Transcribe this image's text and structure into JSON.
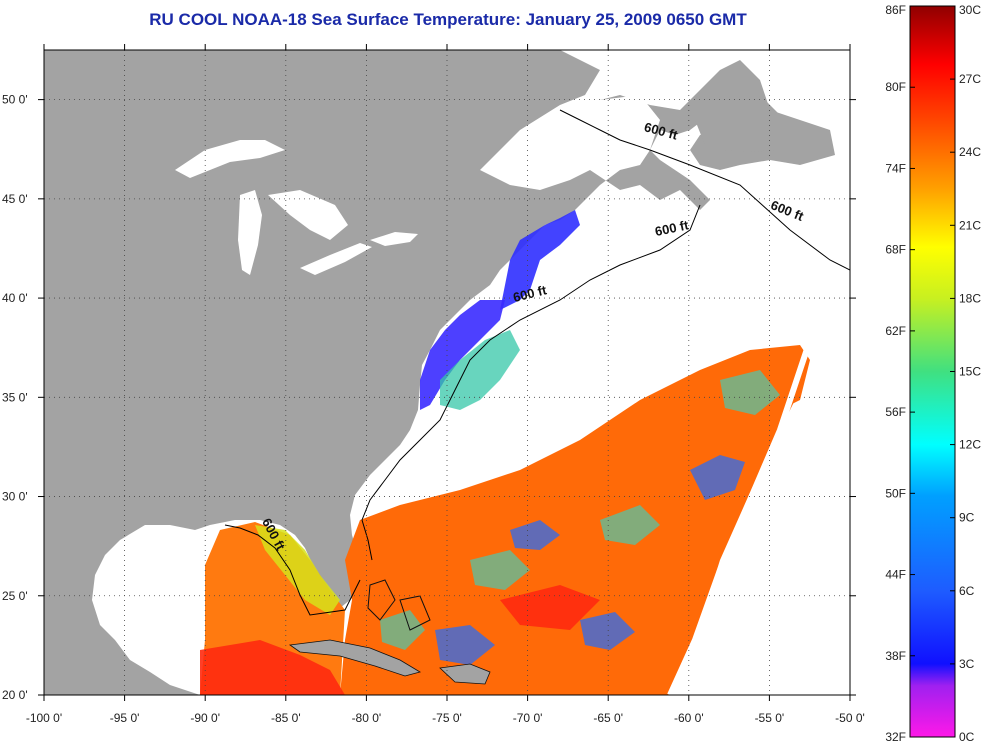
{
  "title": "RU COOL  NOAA-18  Sea Surface Temperature:  January 25, 2009 0650 GMT",
  "map": {
    "lon_range": [
      -100,
      -50
    ],
    "lat_range": [
      20,
      52.5
    ],
    "lon_ticks": [
      {
        "value": -100,
        "label": "-100 0'"
      },
      {
        "value": -95,
        "label": "-95 0'"
      },
      {
        "value": -90,
        "label": "-90 0'"
      },
      {
        "value": -85,
        "label": "-85 0'"
      },
      {
        "value": -80,
        "label": "-80 0'"
      },
      {
        "value": -75,
        "label": "-75 0'"
      },
      {
        "value": -70,
        "label": "-70 0'"
      },
      {
        "value": -65,
        "label": "-65 0'"
      },
      {
        "value": -60,
        "label": "-60 0'"
      },
      {
        "value": -55,
        "label": "-55 0'"
      },
      {
        "value": -50,
        "label": "-50 0'"
      }
    ],
    "lat_ticks": [
      {
        "value": 50,
        "label": "50 0'"
      },
      {
        "value": 45,
        "label": "45 0'"
      },
      {
        "value": 40,
        "label": "40 0'"
      },
      {
        "value": 35,
        "label": "35 0'"
      },
      {
        "value": 30,
        "label": "30 0'"
      },
      {
        "value": 25,
        "label": "25 0'"
      },
      {
        "value": 20,
        "label": "20 0'"
      }
    ],
    "contour_labels": [
      {
        "text": "600 ft",
        "lon": -61.8,
        "lat": 48.2,
        "rotate": 15
      },
      {
        "text": "600 ft",
        "lon": -54.0,
        "lat": 44.2,
        "rotate": 22
      },
      {
        "text": "600 ft",
        "lon": -61.0,
        "lat": 43.3,
        "rotate": -12
      },
      {
        "text": "600 ft",
        "lon": -69.8,
        "lat": 40.0,
        "rotate": -14
      },
      {
        "text": "600 ft",
        "lon": -86.0,
        "lat": 28.0,
        "rotate": 62
      }
    ]
  },
  "colorbar": {
    "f_labels": [
      "86F",
      "80F",
      "74F",
      "68F",
      "62F",
      "56F",
      "50F",
      "44F",
      "38F",
      "32F"
    ],
    "c_labels": [
      "30C",
      "27C",
      "24C",
      "21C",
      "18C",
      "15C",
      "12C",
      "9C",
      "6C",
      "3C",
      "0C"
    ],
    "c_range": [
      0,
      30
    ]
  },
  "colors": {
    "land": "#a3a3a3",
    "cloud": "#ffffff",
    "grid": "#555555"
  }
}
